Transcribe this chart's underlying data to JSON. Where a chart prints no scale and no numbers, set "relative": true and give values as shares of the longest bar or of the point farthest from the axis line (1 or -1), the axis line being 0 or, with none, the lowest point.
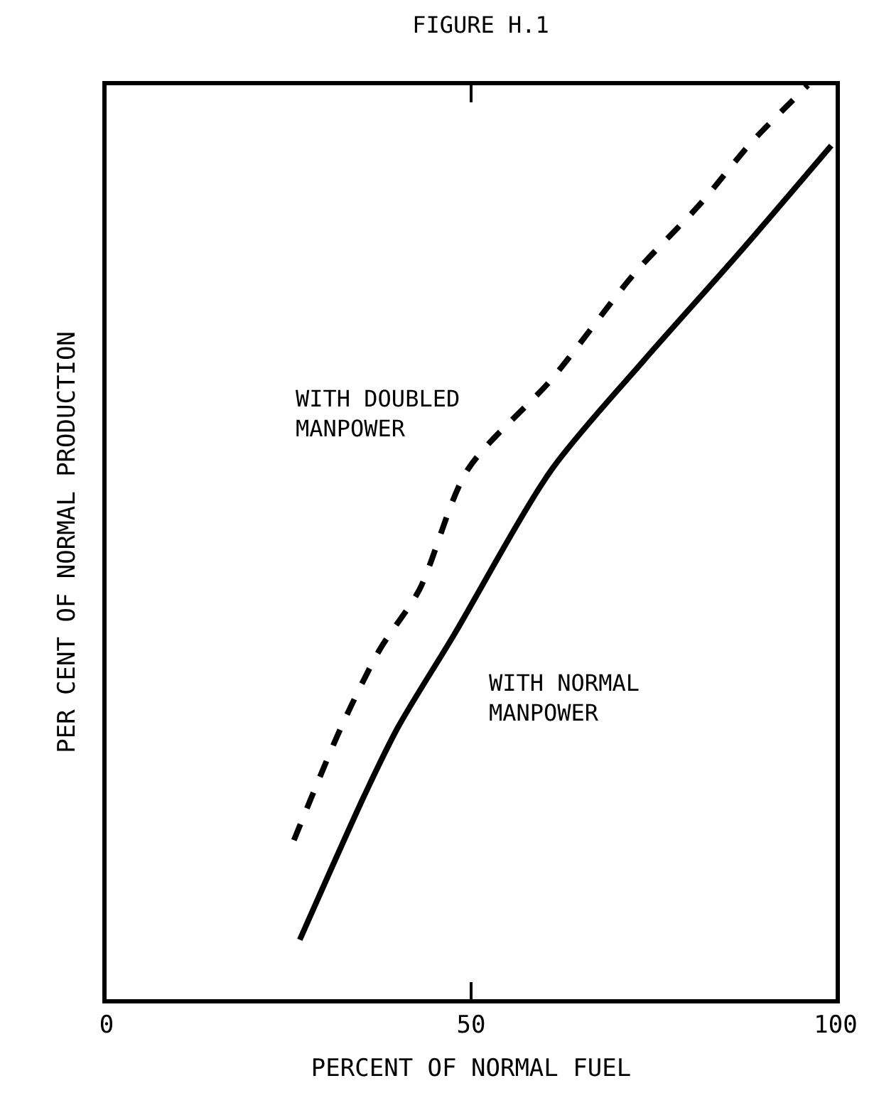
{
  "chart_data": {
    "type": "line",
    "title": "FIGURE H.1",
    "xlabel": "PERCENT OF NORMAL FUEL",
    "ylabel": "PER CENT OF NORMAL PRODUCTION",
    "relative": true,
    "xlim": [
      0,
      100
    ],
    "xticks": [
      0,
      50,
      100
    ],
    "legend": false,
    "marker": "none",
    "series": [
      {
        "name": "WITH DOUBLED\nMANPOWER",
        "color": "#000000",
        "line_style": "dashed",
        "x": [
          25.7,
          32.2,
          37.5,
          42.9,
          49.5,
          61,
          72.4,
          81.3,
          88.4,
          96.2
        ],
        "values": [
          0.174,
          0.298,
          0.383,
          0.448,
          0.579,
          0.678,
          0.794,
          0.869,
          0.937,
          1.0
        ]
      },
      {
        "name": "WITH NORMAL\nMANPOWER",
        "color": "#000000",
        "line_style": "solid",
        "x": [
          26.5,
          35.6,
          40,
          47.6,
          61,
          73.7,
          86.5,
          99.4
        ],
        "values": [
          0.065,
          0.227,
          0.298,
          0.398,
          0.579,
          0.699,
          0.814,
          0.934
        ]
      }
    ]
  }
}
